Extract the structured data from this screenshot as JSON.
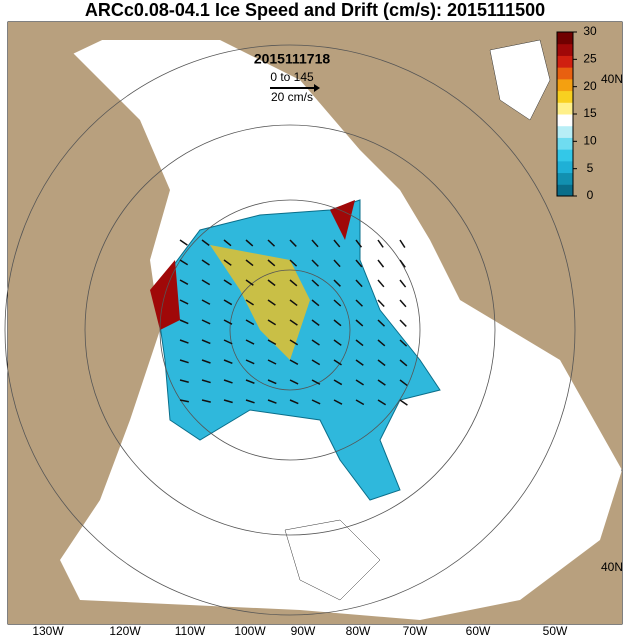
{
  "header": {
    "title": "ARCc0.08-04.1 Ice Speed and Drift (cm/s): 2015111500"
  },
  "map": {
    "date": "2015111718",
    "range": "0 to 145",
    "reference_vector": "20 cm/s",
    "longitude_labels": [
      "130W",
      "120W",
      "110W",
      "100W",
      "90W",
      "80W",
      "70W",
      "60W",
      "50W"
    ],
    "latitude_labels": [
      "40N",
      "40N"
    ]
  },
  "colorbar": {
    "lim": [
      0,
      30
    ],
    "ticks": [
      0,
      5,
      10,
      15,
      20,
      25,
      30
    ],
    "colors": [
      "#0a6e8a",
      "#1290b0",
      "#1fb0d6",
      "#33c8e8",
      "#6fdcf0",
      "#b8eef6",
      "#ffffff",
      "#fff08a",
      "#f8d020",
      "#f4a010",
      "#e86010",
      "#d02010",
      "#a00808",
      "#700000"
    ]
  }
}
